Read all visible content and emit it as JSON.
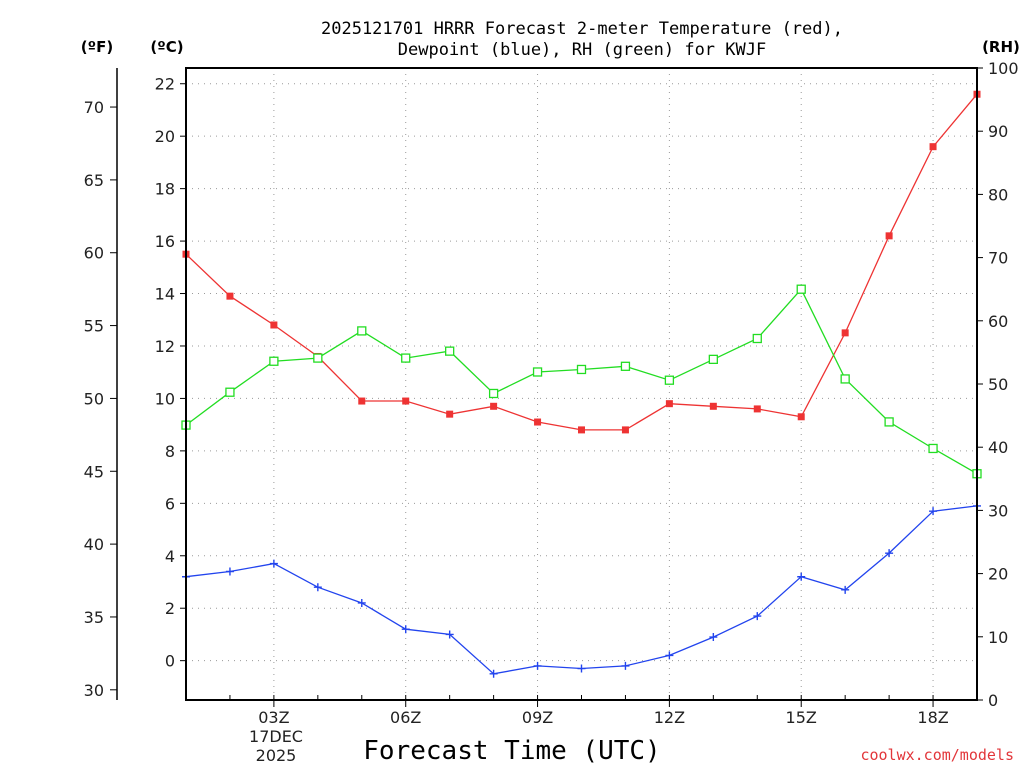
{
  "chart_data": {
    "type": "line",
    "title_line1": "2025121701 HRRR Forecast 2-meter Temperature (red),",
    "title_line2": "Dewpoint (blue), RH (green) for KWJF",
    "units": {
      "fahrenheit": "(ºF)",
      "celsius": "(ºC)",
      "rh": "(RH)"
    },
    "xlabel": "Forecast Time (UTC)",
    "credit": "coolwx.com/models",
    "date_label": {
      "day": "17DEC",
      "year": "2025"
    },
    "x_hours": [
      1,
      2,
      3,
      4,
      5,
      6,
      7,
      8,
      9,
      10,
      11,
      12,
      13,
      14,
      15,
      16,
      17,
      18,
      19
    ],
    "xlim": [
      1,
      19
    ],
    "x_ticks": [
      {
        "hour": 3,
        "label": "03Z"
      },
      {
        "hour": 6,
        "label": "06Z"
      },
      {
        "hour": 9,
        "label": "09Z"
      },
      {
        "hour": 12,
        "label": "12Z"
      },
      {
        "hour": 15,
        "label": "15Z"
      },
      {
        "hour": 18,
        "label": "18Z"
      }
    ],
    "y_celsius": {
      "lim": [
        -1.5,
        22.6
      ],
      "ticks": [
        "0",
        "2",
        "4",
        "6",
        "8",
        "10",
        "12",
        "14",
        "16",
        "18",
        "20",
        "22"
      ]
    },
    "y_fahrenheit": {
      "ticks": [
        "30",
        "35",
        "40",
        "45",
        "50",
        "55",
        "60",
        "65",
        "70"
      ]
    },
    "y_rh": {
      "lim": [
        0,
        100
      ],
      "ticks": [
        "0",
        "10",
        "20",
        "30",
        "40",
        "50",
        "60",
        "70",
        "80",
        "90",
        "100"
      ]
    },
    "grid": true,
    "series": [
      {
        "name": "Temperature",
        "unit": "C",
        "axis": "celsius",
        "color": "#ee3333",
        "marker": "filled-square",
        "values": [
          15.5,
          13.9,
          12.8,
          11.6,
          9.9,
          9.9,
          9.4,
          9.7,
          9.1,
          8.8,
          8.8,
          9.8,
          9.7,
          9.6,
          9.3,
          12.5,
          16.2,
          19.6,
          21.6
        ]
      },
      {
        "name": "Dewpoint",
        "unit": "C",
        "axis": "celsius",
        "color": "#2244ee",
        "marker": "plus",
        "values": [
          3.2,
          3.4,
          3.7,
          2.8,
          2.2,
          1.2,
          1.0,
          -0.5,
          -0.2,
          -0.3,
          -0.2,
          0.2,
          0.9,
          1.7,
          3.2,
          2.7,
          4.1,
          5.7,
          5.9
        ]
      },
      {
        "name": "RH",
        "unit": "%",
        "axis": "rh",
        "color": "#22dd22",
        "marker": "open-square",
        "values": [
          43.5,
          48.7,
          53.6,
          54.1,
          58.4,
          54.1,
          55.2,
          48.5,
          51.9,
          52.3,
          52.8,
          50.6,
          53.9,
          57.2,
          65.0,
          50.8,
          44.0,
          39.8,
          35.8
        ]
      }
    ]
  }
}
